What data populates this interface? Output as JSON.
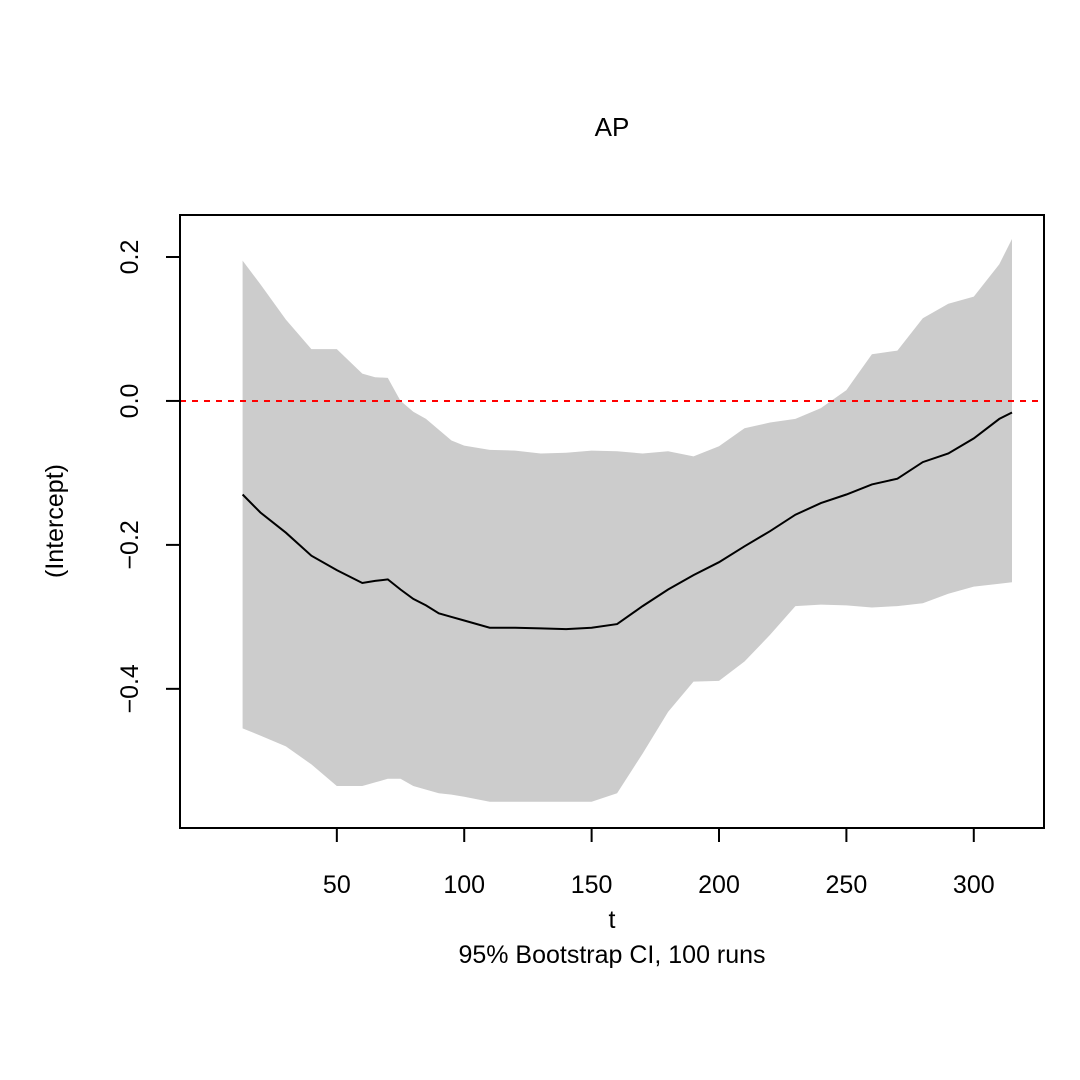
{
  "chart_data": {
    "type": "line",
    "title": "AP",
    "xlabel": "t",
    "ylabel": "(Intercept)",
    "subtitle": "95% Bootstrap CI, 100 runs",
    "xlim": [
      1,
      315
    ],
    "ylim": [
      -0.56,
      0.225
    ],
    "x_ticks": [
      50,
      100,
      150,
      200,
      250,
      300
    ],
    "x_tick_labels": [
      "50",
      "100",
      "150",
      "200",
      "250",
      "300"
    ],
    "y_ticks": [
      -0.4,
      -0.2,
      0.0,
      0.2
    ],
    "y_tick_labels": [
      "−0.4",
      "−0.2",
      "0.0",
      "0.2"
    ],
    "reference_line": {
      "y": 0.0,
      "color": "#ff0000",
      "style": "dashed"
    },
    "grid": false,
    "colors": {
      "band": "#cccccc",
      "estimate": "#000000",
      "reference": "#ff0000"
    },
    "x": [
      13,
      20,
      30,
      40,
      50,
      60,
      65,
      70,
      75,
      80,
      85,
      90,
      95,
      100,
      110,
      120,
      130,
      140,
      150,
      160,
      170,
      180,
      190,
      200,
      210,
      220,
      230,
      240,
      250,
      260,
      270,
      280,
      290,
      300,
      310,
      315
    ],
    "series": [
      {
        "name": "",
        "role": "estimate",
        "values": [
          -0.13,
          -0.155,
          -0.183,
          -0.215,
          -0.235,
          -0.253,
          -0.25,
          -0.248,
          -0.262,
          -0.275,
          -0.284,
          -0.295,
          -0.3,
          -0.305,
          -0.315,
          -0.315,
          -0.316,
          -0.317,
          -0.315,
          -0.31,
          -0.285,
          -0.262,
          -0.242,
          -0.224,
          -0.202,
          -0.181,
          -0.158,
          -0.142,
          -0.13,
          -0.116,
          -0.108,
          -0.085,
          -0.073,
          -0.052,
          -0.025,
          -0.016
        ]
      },
      {
        "name": "",
        "role": "ci_upper",
        "values": [
          0.195,
          0.162,
          0.113,
          0.072,
          0.072,
          0.038,
          0.033,
          0.032,
          0.0,
          -0.015,
          -0.025,
          -0.04,
          -0.055,
          -0.062,
          -0.068,
          -0.069,
          -0.073,
          -0.072,
          -0.069,
          -0.07,
          -0.073,
          -0.07,
          -0.077,
          -0.063,
          -0.038,
          -0.03,
          -0.025,
          -0.01,
          0.015,
          0.065,
          0.07,
          0.115,
          0.135,
          0.145,
          0.19,
          0.225
        ]
      },
      {
        "name": "",
        "role": "ci_lower",
        "values": [
          -0.455,
          -0.465,
          -0.48,
          -0.505,
          -0.535,
          -0.535,
          -0.53,
          -0.525,
          -0.525,
          -0.535,
          -0.54,
          -0.545,
          -0.547,
          -0.55,
          -0.557,
          -0.557,
          -0.557,
          -0.557,
          -0.557,
          -0.545,
          -0.49,
          -0.432,
          -0.39,
          -0.389,
          -0.362,
          -0.325,
          -0.285,
          -0.283,
          -0.284,
          -0.287,
          -0.285,
          -0.281,
          -0.268,
          -0.258,
          -0.254,
          -0.252
        ]
      }
    ]
  }
}
